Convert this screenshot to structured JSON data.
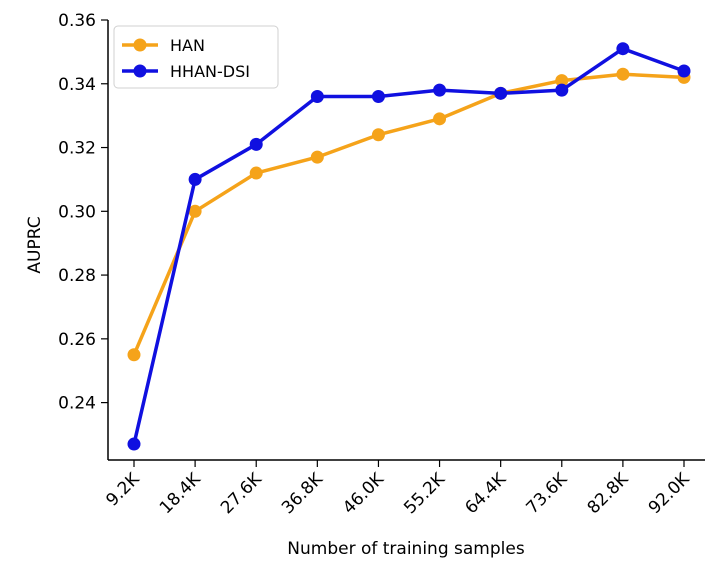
{
  "chart_data": {
    "type": "line",
    "title": "",
    "xlabel": "Number of training samples",
    "ylabel": "AUPRC",
    "categories": [
      "9.2K",
      "18.4K",
      "27.6K",
      "36.8K",
      "46.0K",
      "55.2K",
      "64.4K",
      "73.6K",
      "82.8K",
      "92.0K"
    ],
    "ylim": [
      0.222,
      0.36
    ],
    "yticks": [
      "0.24",
      "0.26",
      "0.28",
      "0.30",
      "0.32",
      "0.34",
      "0.36"
    ],
    "grid": false,
    "legend_position": "top-left",
    "series": [
      {
        "name": "HAN",
        "color": "#F5A31A",
        "values": [
          0.255,
          0.3,
          0.312,
          0.317,
          0.324,
          0.329,
          0.337,
          0.341,
          0.343,
          0.342
        ]
      },
      {
        "name": "HHAN-DSI",
        "color": "#1010E0",
        "values": [
          0.227,
          0.31,
          0.321,
          0.336,
          0.336,
          0.338,
          0.337,
          0.338,
          0.351,
          0.344
        ]
      }
    ]
  }
}
